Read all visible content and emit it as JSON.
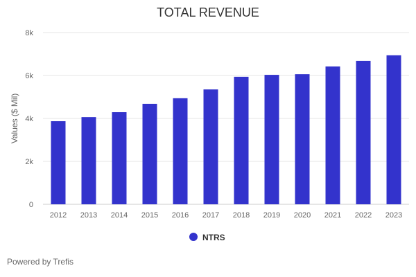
{
  "chart_data": {
    "type": "bar",
    "title": "TOTAL REVENUE",
    "xlabel": "",
    "ylabel": "Values ($ Mil)",
    "ylim": [
      0,
      8000
    ],
    "yticks": [
      0,
      2000,
      4000,
      6000,
      8000
    ],
    "ytick_labels": [
      "0",
      "2k",
      "4k",
      "6k",
      "8k"
    ],
    "grid": true,
    "legend_position": "bottom",
    "categories": [
      "2012",
      "2013",
      "2014",
      "2015",
      "2016",
      "2017",
      "2018",
      "2019",
      "2020",
      "2021",
      "2022",
      "2023"
    ],
    "series": [
      {
        "name": "NTRS",
        "color": "#3333cc",
        "values": [
          3870,
          4060,
          4290,
          4680,
          4940,
          5350,
          5940,
          6030,
          6060,
          6420,
          6680,
          6940
        ]
      }
    ]
  },
  "footer": {
    "credit": "Powered by Trefis"
  }
}
